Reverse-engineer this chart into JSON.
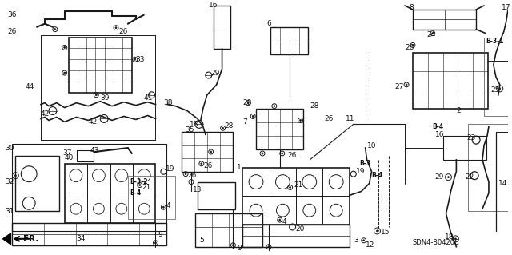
{
  "bg_color": "#ffffff",
  "diagram_code": "SDN4-B0420C",
  "fig_width": 6.4,
  "fig_height": 3.19,
  "dpi": 100
}
